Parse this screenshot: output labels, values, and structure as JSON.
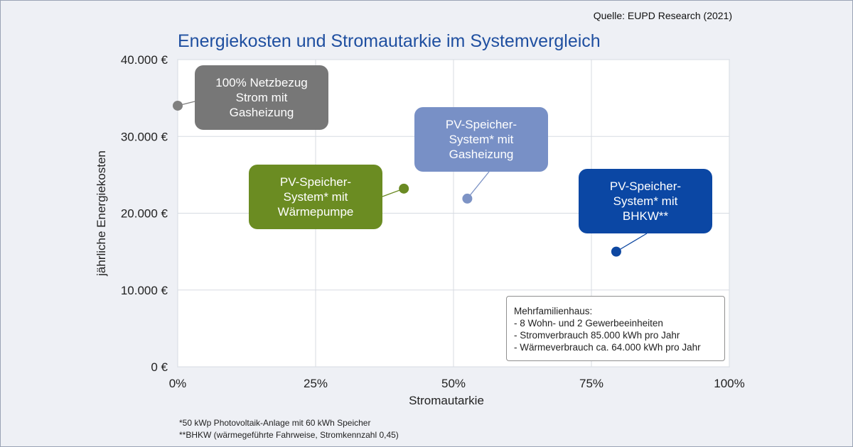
{
  "source": "Quelle: EUPD Research (2021)",
  "footnotes": [
    "*50 kWp Photovoltaik-Anlage mit 60 kWh Speicher",
    "**BHKW (wärmegeführte Fahrweise, Stromkennzahl 0,45)"
  ],
  "infobox": {
    "heading": "Mehrfamilienhaus:",
    "lines": [
      "- 8 Wohn- und 2 Gewerbeeinheiten",
      "- Stromverbrauch 85.000 kWh pro Jahr",
      "- Wärmeverbrauch ca. 64.000 kWh pro Jahr"
    ]
  },
  "chart_data": {
    "type": "scatter",
    "title": "Energiekosten und Stromautarkie im Systemvergleich",
    "xlabel": "Stromautarkie",
    "ylabel": "jährliche Energiekosten",
    "xlim": [
      0,
      1
    ],
    "ylim": [
      0,
      40000
    ],
    "xticks": [
      0,
      0.25,
      0.5,
      0.75,
      1
    ],
    "xtick_labels": [
      "0%",
      "25%",
      "50%",
      "75%",
      "100%"
    ],
    "yticks": [
      0,
      10000,
      20000,
      30000,
      40000
    ],
    "ytick_labels": [
      "0 €",
      "10.000 €",
      "20.000 €",
      "30.000 €",
      "40.000 €"
    ],
    "grid": true,
    "points": [
      {
        "label": "100% Netzbezug Strom mit Gasheizung",
        "x": 0.0,
        "y": 34000,
        "color": "#7f7f7f"
      },
      {
        "label": "PV-Speicher-System* mit Wärmepumpe",
        "x": 0.41,
        "y": 23200,
        "color": "#6a8a23"
      },
      {
        "label": "PV-Speicher-System* mit Gasheizung",
        "x": 0.525,
        "y": 21900,
        "color": "#7d93c5"
      },
      {
        "label": "PV-Speicher-System* mit BHKW**",
        "x": 0.795,
        "y": 15000,
        "color": "#0d47a1"
      }
    ],
    "callouts": [
      {
        "text": "100% Netzbezug\nStrom mit\nGasheizung",
        "color": "#777777"
      },
      {
        "text": "PV-Speicher-\nSystem* mit\nWärmepumpe",
        "color": "#6b8c22"
      },
      {
        "text": "PV-Speicher-\nSystem* mit\nGasheizung",
        "color": "#7890c6"
      },
      {
        "text": "PV-Speicher-\nSystem* mit\nBHKW**",
        "color": "#0b47a4"
      }
    ]
  }
}
